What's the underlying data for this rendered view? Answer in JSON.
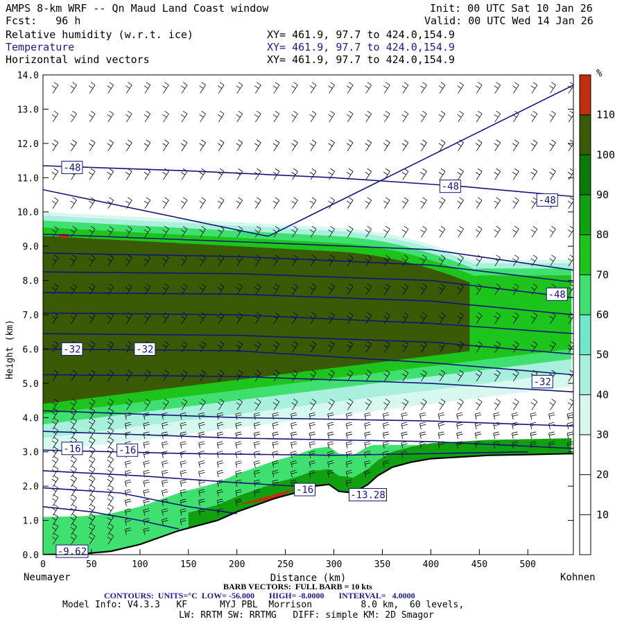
{
  "header": {
    "title": "AMPS 8-km WRF -- Qn Maud Land Coast window",
    "forecast": "Fcst:   96 h",
    "init": "Init: 00 UTC Sat 10 Jan 26",
    "valid": "Valid: 00 UTC Wed 14 Jan 26",
    "fields": [
      {
        "name": "Relative humidity (w.r.t. ice)",
        "xy": "XY= 461.9, 97.7 to 424.0,154.9"
      },
      {
        "name": "Temperature",
        "xy": "XY= 461.9, 97.7 to 424.0,154.9"
      },
      {
        "name": "Horizontal wind vectors",
        "xy": "XY= 461.9, 97.7 to 424.0,154.9"
      }
    ]
  },
  "endpoints": {
    "left": "Neumayer",
    "right": "Kohnen"
  },
  "footer": {
    "barb": "BARB VECTORS:  FULL BARB = 10 kts",
    "contours": "CONTOURS:  UNITS=°C  LOW= -56.000       HIGH= -8.0000       INTERVAL=   4.0000",
    "model": "Model Info: V4.3.3   KF      MYJ PBL  Morrison         8.0 km,  60 levels,",
    "physics": "LW: RRTM SW: RRTMG   DIFF: simple KM: 2D Smagor"
  },
  "chart_data": {
    "type": "heatmap",
    "title": "",
    "xlabel": "Distance (km)",
    "ylabel": "Height (km)",
    "xlim": [
      0,
      547
    ],
    "ylim": [
      0,
      14
    ],
    "x_ticks": [
      0,
      50,
      100,
      150,
      200,
      250,
      300,
      350,
      400,
      450,
      500
    ],
    "y_ticks": [
      "0.0",
      "1.0",
      "2.0",
      "3.0",
      "4.0",
      "5.0",
      "6.0",
      "7.0",
      "8.0",
      "9.0",
      "10.0",
      "11.0",
      "12.0",
      "13.0",
      "14.0"
    ],
    "colorbar": {
      "unit": "%",
      "tick_labels": [
        "10",
        "20",
        "30",
        "40",
        "50",
        "60",
        "70",
        "80",
        "90",
        "100",
        "110"
      ],
      "levels": [
        0,
        10,
        20,
        30,
        40,
        50,
        60,
        70,
        80,
        90,
        100,
        110,
        120
      ],
      "colors": [
        "#ffffff",
        "#ffffff",
        "#ffffff",
        "#d7f8ef",
        "#a8f0dc",
        "#70e8cc",
        "#40e070",
        "#1cc41c",
        "#10a010",
        "#0a780a",
        "#3a5a06",
        "#c03010"
      ]
    },
    "terrain": {
      "x": [
        0,
        40,
        70,
        100,
        140,
        180,
        200,
        220,
        240,
        260,
        280,
        295,
        305,
        320,
        335,
        345,
        360,
        380,
        400,
        430,
        460,
        500,
        547
      ],
      "y": [
        0.0,
        0.02,
        0.1,
        0.3,
        0.7,
        1.0,
        1.25,
        1.45,
        1.65,
        1.8,
        2.0,
        2.05,
        1.85,
        1.8,
        2.05,
        2.3,
        2.55,
        2.7,
        2.8,
        2.85,
        2.9,
        2.92,
        2.95
      ]
    },
    "temperature_contours": {
      "units": "°C",
      "low": -56.0,
      "high": -8.0,
      "interval": 4.0,
      "labels": [
        {
          "text": "-48",
          "x": 30,
          "z": 11.3
        },
        {
          "text": "-48",
          "x": 420,
          "z": 10.75
        },
        {
          "text": "-48",
          "x": 520,
          "z": 10.35
        },
        {
          "text": "-48",
          "x": 530,
          "z": 7.6
        },
        {
          "text": "-32",
          "x": 30,
          "z": 6.0
        },
        {
          "text": "-32",
          "x": 105,
          "z": 6.0
        },
        {
          "text": "-32",
          "x": 515,
          "z": 5.05
        },
        {
          "text": "-16",
          "x": 30,
          "z": 3.1
        },
        {
          "text": "-16",
          "x": 87,
          "z": 3.05
        },
        {
          "text": "-16",
          "x": 270,
          "z": 1.9
        },
        {
          "text": "-13.28",
          "x": 335,
          "z": 1.75
        },
        {
          "text": "-9.62",
          "x": 30,
          "z": 0.1
        }
      ],
      "lines": [
        {
          "x": [
            0,
            150,
            300,
            430,
            547
          ],
          "z": [
            11.35,
            11.2,
            11.0,
            10.75,
            10.45
          ]
        },
        {
          "x": [
            0,
            230,
            233,
            547
          ],
          "z": [
            10.65,
            9.3,
            9.3,
            13.7
          ]
        },
        {
          "x": [
            0,
            230,
            400,
            547
          ],
          "z": [
            9.35,
            9.1,
            8.9,
            8.3
          ]
        },
        {
          "x": [
            0,
            200,
            400,
            547
          ],
          "z": [
            8.8,
            8.7,
            8.45,
            7.95
          ]
        },
        {
          "x": [
            0,
            200,
            400,
            547
          ],
          "z": [
            8.25,
            8.2,
            8.0,
            7.5
          ]
        },
        {
          "x": [
            0,
            200,
            400,
            547
          ],
          "z": [
            7.65,
            7.6,
            7.4,
            7.0
          ]
        },
        {
          "x": [
            0,
            200,
            400,
            547
          ],
          "z": [
            7.05,
            7.0,
            6.75,
            6.45
          ]
        },
        {
          "x": [
            0,
            200,
            400,
            547
          ],
          "z": [
            6.45,
            6.4,
            6.2,
            5.85
          ]
        },
        {
          "x": [
            0,
            200,
            400,
            547
          ],
          "z": [
            6.0,
            5.95,
            5.6,
            5.25
          ]
        },
        {
          "x": [
            0,
            200,
            400,
            547
          ],
          "z": [
            5.25,
            5.2,
            5.0,
            4.75
          ]
        },
        {
          "x": [
            0,
            200,
            400,
            547
          ],
          "z": [
            4.2,
            4.0,
            3.9,
            3.75
          ]
        },
        {
          "x": [
            0,
            200,
            400,
            547
          ],
          "z": [
            3.6,
            3.4,
            3.3,
            3.1
          ]
        },
        {
          "x": [
            0,
            150,
            300,
            500
          ],
          "z": [
            3.05,
            2.95,
            2.9,
            3.0
          ]
        },
        {
          "x": [
            0,
            100,
            200,
            260
          ],
          "z": [
            2.45,
            2.3,
            2.1,
            2.0
          ]
        },
        {
          "x": [
            0,
            80,
            150,
            200
          ],
          "z": [
            1.95,
            1.8,
            1.4,
            1.2
          ]
        },
        {
          "x": [
            0,
            50,
            100,
            140
          ],
          "z": [
            1.4,
            1.25,
            1.0,
            0.75
          ]
        }
      ]
    },
    "wind_barbs": {
      "full_barb_kts": 10,
      "upper_level_direction": "southwest",
      "lower_level": "stronger easterly/southeasterly flow below ~4 km"
    }
  }
}
